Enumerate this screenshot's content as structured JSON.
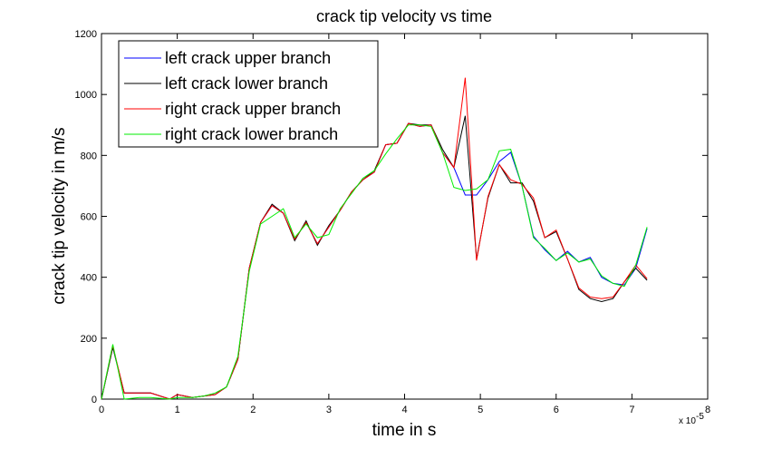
{
  "chart_data": {
    "type": "line",
    "title": "crack tip velocity vs time",
    "xlabel": "time in s",
    "ylabel": "crack tip velocity in m/s",
    "x_multiplier": "x 10",
    "x_multiplier_exp": "-5",
    "xlim": [
      0,
      8
    ],
    "ylim": [
      0,
      1200
    ],
    "xticks": [
      "0",
      "1",
      "2",
      "3",
      "4",
      "5",
      "6",
      "7",
      "8"
    ],
    "yticks": [
      "0",
      "200",
      "400",
      "600",
      "800",
      "1000",
      "1200"
    ],
    "grid": false,
    "legend_position": "top-left",
    "series": [
      {
        "name": "left crack upper branch",
        "color": "#0000ff",
        "points": [
          [
            0,
            0
          ],
          [
            0.15,
            170
          ],
          [
            0.3,
            20
          ],
          [
            0.5,
            20
          ],
          [
            0.65,
            20
          ],
          [
            0.9,
            0
          ],
          [
            1.0,
            15
          ],
          [
            1.2,
            5
          ],
          [
            1.35,
            10
          ],
          [
            1.5,
            15
          ],
          [
            1.65,
            40
          ],
          [
            1.8,
            130
          ],
          [
            1.95,
            430
          ],
          [
            2.1,
            580
          ],
          [
            2.25,
            635
          ],
          [
            2.4,
            610
          ],
          [
            2.55,
            525
          ],
          [
            2.7,
            580
          ],
          [
            2.85,
            510
          ],
          [
            3.0,
            565
          ],
          [
            3.15,
            620
          ],
          [
            3.3,
            680
          ],
          [
            3.45,
            720
          ],
          [
            3.6,
            745
          ],
          [
            3.75,
            835
          ],
          [
            3.9,
            840
          ],
          [
            4.05,
            905
          ],
          [
            4.2,
            895
          ],
          [
            4.35,
            900
          ],
          [
            4.5,
            810
          ],
          [
            4.65,
            760
          ],
          [
            4.8,
            670
          ],
          [
            4.95,
            670
          ],
          [
            5.1,
            720
          ],
          [
            5.25,
            780
          ],
          [
            5.4,
            810
          ],
          [
            5.55,
            700
          ],
          [
            5.7,
            535
          ],
          [
            5.85,
            490
          ],
          [
            6.0,
            455
          ],
          [
            6.15,
            485
          ],
          [
            6.3,
            450
          ],
          [
            6.45,
            465
          ],
          [
            6.6,
            400
          ],
          [
            6.75,
            380
          ],
          [
            6.9,
            375
          ],
          [
            7.05,
            430
          ],
          [
            7.2,
            560
          ]
        ]
      },
      {
        "name": "left crack lower branch",
        "color": "#000000",
        "points": [
          [
            0,
            0
          ],
          [
            0.15,
            170
          ],
          [
            0.3,
            20
          ],
          [
            0.5,
            20
          ],
          [
            0.65,
            20
          ],
          [
            0.9,
            0
          ],
          [
            1.0,
            15
          ],
          [
            1.2,
            5
          ],
          [
            1.35,
            10
          ],
          [
            1.5,
            15
          ],
          [
            1.65,
            40
          ],
          [
            1.8,
            130
          ],
          [
            1.95,
            430
          ],
          [
            2.1,
            580
          ],
          [
            2.25,
            640
          ],
          [
            2.4,
            610
          ],
          [
            2.55,
            520
          ],
          [
            2.7,
            585
          ],
          [
            2.85,
            505
          ],
          [
            3.0,
            570
          ],
          [
            3.15,
            620
          ],
          [
            3.3,
            680
          ],
          [
            3.45,
            720
          ],
          [
            3.6,
            750
          ],
          [
            3.75,
            835
          ],
          [
            3.9,
            840
          ],
          [
            4.05,
            905
          ],
          [
            4.2,
            900
          ],
          [
            4.35,
            900
          ],
          [
            4.5,
            820
          ],
          [
            4.65,
            760
          ],
          [
            4.8,
            930
          ],
          [
            4.95,
            460
          ],
          [
            5.1,
            660
          ],
          [
            5.25,
            770
          ],
          [
            5.4,
            710
          ],
          [
            5.55,
            710
          ],
          [
            5.7,
            650
          ],
          [
            5.85,
            530
          ],
          [
            6.0,
            550
          ],
          [
            6.15,
            460
          ],
          [
            6.3,
            360
          ],
          [
            6.45,
            330
          ],
          [
            6.6,
            320
          ],
          [
            6.75,
            330
          ],
          [
            6.9,
            385
          ],
          [
            7.05,
            430
          ],
          [
            7.2,
            390
          ]
        ]
      },
      {
        "name": "right crack upper branch",
        "color": "#ff0000",
        "points": [
          [
            0,
            0
          ],
          [
            0.15,
            175
          ],
          [
            0.3,
            20
          ],
          [
            0.5,
            20
          ],
          [
            0.65,
            20
          ],
          [
            0.9,
            0
          ],
          [
            1.0,
            15
          ],
          [
            1.2,
            5
          ],
          [
            1.35,
            10
          ],
          [
            1.5,
            15
          ],
          [
            1.65,
            40
          ],
          [
            1.8,
            130
          ],
          [
            1.95,
            430
          ],
          [
            2.1,
            580
          ],
          [
            2.25,
            635
          ],
          [
            2.4,
            610
          ],
          [
            2.55,
            525
          ],
          [
            2.7,
            580
          ],
          [
            2.85,
            510
          ],
          [
            3.0,
            565
          ],
          [
            3.15,
            620
          ],
          [
            3.3,
            680
          ],
          [
            3.45,
            720
          ],
          [
            3.6,
            745
          ],
          [
            3.75,
            835
          ],
          [
            3.9,
            840
          ],
          [
            4.05,
            905
          ],
          [
            4.2,
            895
          ],
          [
            4.35,
            900
          ],
          [
            4.5,
            810
          ],
          [
            4.65,
            760
          ],
          [
            4.8,
            1055
          ],
          [
            4.95,
            455
          ],
          [
            5.1,
            665
          ],
          [
            5.25,
            770
          ],
          [
            5.4,
            720
          ],
          [
            5.55,
            705
          ],
          [
            5.7,
            660
          ],
          [
            5.85,
            530
          ],
          [
            6.0,
            555
          ],
          [
            6.15,
            460
          ],
          [
            6.3,
            365
          ],
          [
            6.45,
            335
          ],
          [
            6.6,
            330
          ],
          [
            6.75,
            335
          ],
          [
            6.9,
            385
          ],
          [
            7.05,
            440
          ],
          [
            7.2,
            395
          ]
        ]
      },
      {
        "name": "right crack lower branch",
        "color": "#00ee00",
        "points": [
          [
            0,
            0
          ],
          [
            0.15,
            180
          ],
          [
            0.3,
            0
          ],
          [
            0.5,
            5
          ],
          [
            0.65,
            5
          ],
          [
            0.9,
            0
          ],
          [
            1.0,
            5
          ],
          [
            1.2,
            5
          ],
          [
            1.35,
            10
          ],
          [
            1.5,
            20
          ],
          [
            1.65,
            40
          ],
          [
            1.8,
            140
          ],
          [
            1.95,
            420
          ],
          [
            2.1,
            575
          ],
          [
            2.25,
            600
          ],
          [
            2.4,
            625
          ],
          [
            2.55,
            530
          ],
          [
            2.7,
            575
          ],
          [
            2.85,
            530
          ],
          [
            3.0,
            540
          ],
          [
            3.15,
            625
          ],
          [
            3.3,
            675
          ],
          [
            3.45,
            725
          ],
          [
            3.6,
            750
          ],
          [
            3.75,
            805
          ],
          [
            3.9,
            855
          ],
          [
            4.05,
            900
          ],
          [
            4.2,
            900
          ],
          [
            4.35,
            895
          ],
          [
            4.5,
            810
          ],
          [
            4.65,
            695
          ],
          [
            4.8,
            685
          ],
          [
            4.95,
            690
          ],
          [
            5.1,
            720
          ],
          [
            5.25,
            815
          ],
          [
            5.4,
            820
          ],
          [
            5.55,
            700
          ],
          [
            5.7,
            530
          ],
          [
            5.85,
            495
          ],
          [
            6.0,
            455
          ],
          [
            6.15,
            480
          ],
          [
            6.3,
            450
          ],
          [
            6.45,
            460
          ],
          [
            6.6,
            405
          ],
          [
            6.75,
            380
          ],
          [
            6.9,
            370
          ],
          [
            7.05,
            440
          ],
          [
            7.2,
            565
          ]
        ]
      }
    ]
  }
}
